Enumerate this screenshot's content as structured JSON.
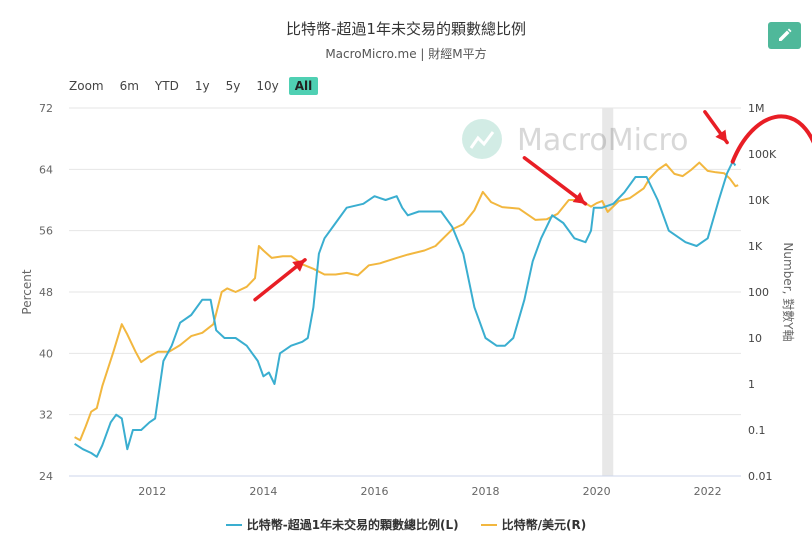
{
  "header": {
    "title": "比特幣-超過1年未交易的顆數總比例",
    "subtitle": "MacroMicro.me | 財經M平方",
    "edit_icon": "pencil-icon"
  },
  "zoom": {
    "label": "Zoom",
    "buttons": [
      "6m",
      "YTD",
      "1y",
      "5y",
      "10y",
      "All"
    ],
    "active": "All"
  },
  "watermark": {
    "text": "MacroMicro",
    "icon": "chart-logo-icon"
  },
  "colors": {
    "left_series": "#3aaed0",
    "right_series": "#f2b73f",
    "annotation": "#e81e25",
    "shade": "#e8e8e8",
    "accent": "#4fd0b3"
  },
  "chart_data": {
    "type": "line",
    "x_ticks": [
      "2012",
      "2014",
      "2016",
      "2018",
      "2020",
      "2022"
    ],
    "xlim": [
      2010.5,
      2022.6
    ],
    "y_left": {
      "label": "Percent",
      "ticks": [
        "24",
        "32",
        "40",
        "48",
        "56",
        "64",
        "72"
      ],
      "range": [
        24,
        72
      ]
    },
    "y_right": {
      "label": "Number, 對數Y軸",
      "scale": "log",
      "ticks": [
        "0.01",
        "0.1",
        "1",
        "10",
        "100",
        "1K",
        "10K",
        "100K",
        "1M"
      ],
      "range": [
        0.01,
        1000000
      ]
    },
    "shaded_band": [
      2020.1,
      2020.3
    ],
    "series": [
      {
        "name": "比特幣-超過1年未交易的顆數總比例(L)",
        "axis": "left",
        "points": [
          [
            2010.6,
            28.2
          ],
          [
            2010.75,
            27.5
          ],
          [
            2010.9,
            27
          ],
          [
            2011.0,
            26.5
          ],
          [
            2011.1,
            28
          ],
          [
            2011.25,
            31
          ],
          [
            2011.35,
            32
          ],
          [
            2011.45,
            31.5
          ],
          [
            2011.55,
            27.5
          ],
          [
            2011.65,
            30
          ],
          [
            2011.8,
            30
          ],
          [
            2011.95,
            31
          ],
          [
            2012.05,
            31.5
          ],
          [
            2012.2,
            39
          ],
          [
            2012.35,
            41
          ],
          [
            2012.5,
            44
          ],
          [
            2012.7,
            45
          ],
          [
            2012.9,
            47
          ],
          [
            2013.05,
            47
          ],
          [
            2013.15,
            43
          ],
          [
            2013.3,
            42
          ],
          [
            2013.5,
            42
          ],
          [
            2013.7,
            41
          ],
          [
            2013.9,
            39
          ],
          [
            2014.0,
            37
          ],
          [
            2014.1,
            37.5
          ],
          [
            2014.2,
            36
          ],
          [
            2014.3,
            40
          ],
          [
            2014.5,
            41
          ],
          [
            2014.7,
            41.5
          ],
          [
            2014.8,
            42
          ],
          [
            2014.9,
            46
          ],
          [
            2015.0,
            53
          ],
          [
            2015.1,
            55
          ],
          [
            2015.3,
            57
          ],
          [
            2015.5,
            59
          ],
          [
            2015.8,
            59.5
          ],
          [
            2016.0,
            60.5
          ],
          [
            2016.2,
            60
          ],
          [
            2016.4,
            60.5
          ],
          [
            2016.5,
            59
          ],
          [
            2016.6,
            58
          ],
          [
            2016.8,
            58.5
          ],
          [
            2017.0,
            58.5
          ],
          [
            2017.2,
            58.5
          ],
          [
            2017.4,
            56.5
          ],
          [
            2017.6,
            53
          ],
          [
            2017.8,
            46
          ],
          [
            2017.9,
            44
          ],
          [
            2018.0,
            42
          ],
          [
            2018.2,
            41
          ],
          [
            2018.35,
            41
          ],
          [
            2018.5,
            42
          ],
          [
            2018.7,
            47
          ],
          [
            2018.85,
            52
          ],
          [
            2019.0,
            55
          ],
          [
            2019.2,
            58
          ],
          [
            2019.4,
            57
          ],
          [
            2019.6,
            55
          ],
          [
            2019.8,
            54.5
          ],
          [
            2019.9,
            56
          ],
          [
            2019.95,
            59
          ],
          [
            2020.1,
            59
          ],
          [
            2020.3,
            59.5
          ],
          [
            2020.5,
            61
          ],
          [
            2020.7,
            63
          ],
          [
            2020.9,
            63
          ],
          [
            2021.1,
            60
          ],
          [
            2021.3,
            56
          ],
          [
            2021.6,
            54.5
          ],
          [
            2021.8,
            54
          ],
          [
            2022.0,
            55
          ],
          [
            2022.2,
            60
          ],
          [
            2022.35,
            63.5
          ],
          [
            2022.45,
            65
          ],
          [
            2022.5,
            64.5
          ]
        ]
      },
      {
        "name": "比特幣/美元(R)",
        "axis": "right",
        "points": [
          [
            2010.6,
            0.07
          ],
          [
            2010.7,
            0.06
          ],
          [
            2010.8,
            0.12
          ],
          [
            2010.9,
            0.25
          ],
          [
            2011.0,
            0.3
          ],
          [
            2011.1,
            0.9
          ],
          [
            2011.3,
            5
          ],
          [
            2011.45,
            20
          ],
          [
            2011.55,
            12
          ],
          [
            2011.7,
            5
          ],
          [
            2011.8,
            3
          ],
          [
            2011.95,
            4
          ],
          [
            2012.1,
            5
          ],
          [
            2012.3,
            5
          ],
          [
            2012.5,
            7
          ],
          [
            2012.7,
            11
          ],
          [
            2012.9,
            13
          ],
          [
            2013.1,
            20
          ],
          [
            2013.25,
            100
          ],
          [
            2013.35,
            120
          ],
          [
            2013.5,
            100
          ],
          [
            2013.7,
            130
          ],
          [
            2013.85,
            200
          ],
          [
            2013.92,
            1000
          ],
          [
            2014.0,
            800
          ],
          [
            2014.15,
            550
          ],
          [
            2014.35,
            600
          ],
          [
            2014.5,
            600
          ],
          [
            2014.7,
            400
          ],
          [
            2014.9,
            320
          ],
          [
            2015.1,
            240
          ],
          [
            2015.3,
            240
          ],
          [
            2015.5,
            260
          ],
          [
            2015.7,
            230
          ],
          [
            2015.9,
            380
          ],
          [
            2016.1,
            420
          ],
          [
            2016.4,
            550
          ],
          [
            2016.6,
            650
          ],
          [
            2016.9,
            800
          ],
          [
            2017.1,
            1000
          ],
          [
            2017.4,
            2300
          ],
          [
            2017.6,
            3000
          ],
          [
            2017.8,
            6000
          ],
          [
            2017.95,
            15000
          ],
          [
            2018.1,
            9000
          ],
          [
            2018.3,
            7000
          ],
          [
            2018.6,
            6500
          ],
          [
            2018.9,
            3700
          ],
          [
            2019.1,
            3800
          ],
          [
            2019.3,
            5000
          ],
          [
            2019.5,
            10000
          ],
          [
            2019.7,
            10000
          ],
          [
            2019.9,
            7200
          ],
          [
            2020.0,
            8500
          ],
          [
            2020.1,
            9500
          ],
          [
            2020.2,
            5500
          ],
          [
            2020.4,
            9500
          ],
          [
            2020.6,
            11000
          ],
          [
            2020.85,
            18000
          ],
          [
            2020.95,
            29000
          ],
          [
            2021.1,
            45000
          ],
          [
            2021.25,
            60000
          ],
          [
            2021.4,
            37000
          ],
          [
            2021.55,
            33000
          ],
          [
            2021.7,
            45000
          ],
          [
            2021.85,
            65000
          ],
          [
            2022.0,
            43000
          ],
          [
            2022.15,
            40000
          ],
          [
            2022.3,
            38000
          ],
          [
            2022.4,
            29000
          ],
          [
            2022.5,
            20000
          ],
          [
            2022.55,
            21000
          ]
        ]
      }
    ],
    "annotations": [
      {
        "type": "arrow",
        "from": [
          2013.85,
          47
        ],
        "to": [
          2014.75,
          52.2
        ]
      },
      {
        "type": "arrow",
        "from": [
          2018.7,
          65.5
        ],
        "to": [
          2019.8,
          59.5
        ]
      },
      {
        "type": "arrow",
        "from": [
          2021.95,
          71.5
        ],
        "to": [
          2022.35,
          67.5
        ]
      },
      {
        "type": "curve"
      }
    ]
  },
  "legend": {
    "items": [
      {
        "label": "比特幣-超過1年未交易的顆數總比例(L)",
        "color": "#3aaed0"
      },
      {
        "label": "比特幣/美元(R)",
        "color": "#f2b73f"
      }
    ]
  }
}
